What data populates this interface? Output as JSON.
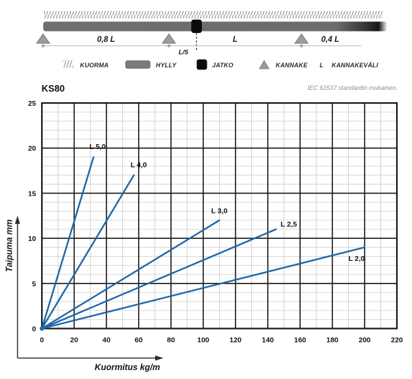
{
  "diagram": {
    "span_labels": {
      "left": "0,8 L",
      "middle": "L",
      "right": "0,4 L"
    },
    "joint_offset_label": "L/5",
    "legend": {
      "kuorma": "KUORMA",
      "hylly": "HYLLY",
      "jatko": "JATKO",
      "kannake": "KANNAKE",
      "l_symbol": "L",
      "kannakevali": "KANNAKEVÄLI"
    }
  },
  "chart_data": {
    "type": "line",
    "title": "KS80",
    "note": "IEC 61537 standardin mukainen.",
    "xlabel": "Kuormitus kg/m",
    "ylabel": "Taipuma mm",
    "xlim": [
      0,
      220
    ],
    "ylim": [
      0,
      25
    ],
    "x_major_step": 20,
    "x_minor_step": 10,
    "y_major_step": 5,
    "y_minor_step": 1,
    "grid": true,
    "legend_position": "inline-labels",
    "line_color": "#1f66a8",
    "x_tick_labels": [
      "0",
      "20",
      "40",
      "60",
      "80",
      "100",
      "120",
      "140",
      "160",
      "180",
      "200",
      "220"
    ],
    "y_tick_labels": [
      "0",
      "5",
      "10",
      "15",
      "20",
      "25"
    ],
    "series": [
      {
        "name": "L 5,0",
        "points": [
          [
            0,
            0
          ],
          [
            32,
            19
          ]
        ],
        "label_at": [
          34.5,
          19.9
        ]
      },
      {
        "name": "L 4,0",
        "points": [
          [
            0,
            0
          ],
          [
            57,
            17
          ]
        ],
        "label_at": [
          60,
          17.9
        ]
      },
      {
        "name": "L 3,0",
        "points": [
          [
            0,
            0
          ],
          [
            110,
            12
          ]
        ],
        "label_at": [
          110,
          12.8
        ]
      },
      {
        "name": "L 2,5",
        "points": [
          [
            0,
            0
          ],
          [
            145,
            11
          ]
        ],
        "label_at": [
          153,
          11.3
        ]
      },
      {
        "name": "L 2,0",
        "points": [
          [
            0,
            0
          ],
          [
            200,
            9
          ]
        ],
        "label_at": [
          195,
          7.5
        ]
      }
    ]
  },
  "colors": {
    "line_blue": "#1f66a8",
    "grid_major": "#141414",
    "grid_minor": "#d2d2d2",
    "beam_gray": "#6e6e6e",
    "support_gray": "#9b9b9b",
    "hatch_gray": "#8f8f8f",
    "note_gray": "#8f8f8f"
  }
}
